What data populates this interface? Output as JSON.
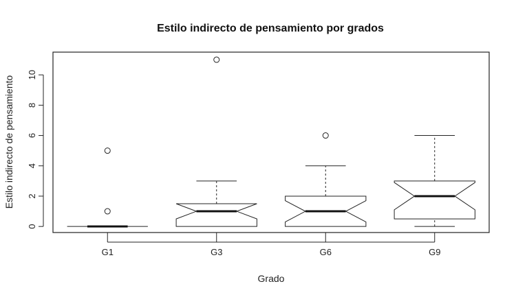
{
  "chart_data": {
    "type": "boxplot",
    "title": "Estilo indirecto de pensamiento por grados",
    "xlabel": "Grado",
    "ylabel": "Estilo indirecto de pensamiento",
    "categories": [
      "G1",
      "G3",
      "G6",
      "G9"
    ],
    "y_ticks": [
      0,
      2,
      4,
      6,
      8,
      10
    ],
    "ylim": [
      -0.4,
      11.5
    ],
    "notched": true,
    "grid": false,
    "boxes": [
      {
        "category": "G1",
        "min": 0,
        "q1": 0,
        "median": 0,
        "q3": 0,
        "max": 0,
        "notch_low": 0,
        "notch_high": 0,
        "outliers": [
          1,
          5
        ]
      },
      {
        "category": "G3",
        "min": 0,
        "q1": 0,
        "median": 1,
        "q3": 1.5,
        "max": 3,
        "notch_low": 0.5,
        "notch_high": 1.5,
        "outliers": [
          11
        ]
      },
      {
        "category": "G6",
        "min": 0,
        "q1": 0,
        "median": 1,
        "q3": 2,
        "max": 4,
        "notch_low": 0.3,
        "notch_high": 1.7,
        "outliers": [
          6
        ]
      },
      {
        "category": "G9",
        "min": 0,
        "q1": 0.5,
        "median": 2,
        "q3": 3,
        "max": 6,
        "notch_low": 1.1,
        "notch_high": 2.9,
        "outliers": []
      }
    ]
  }
}
